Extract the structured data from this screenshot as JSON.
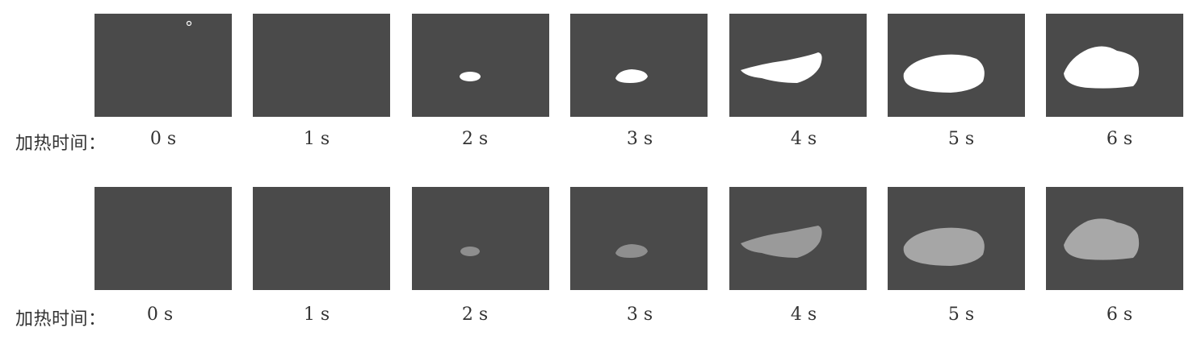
{
  "rows": [
    {
      "label": "加热时间：",
      "style": "binary-white",
      "frames": [
        "0 s",
        "1 s",
        "2 s",
        "3 s",
        "4 s",
        "5 s",
        "6 s"
      ]
    },
    {
      "label": "加热时间：",
      "style": "grey-tone",
      "frames": [
        "0 s",
        "1 s",
        "2 s",
        "3 s",
        "4 s",
        "5 s",
        "6 s"
      ]
    }
  ],
  "colors": {
    "panel_background": "#4a4a4a",
    "top_row_spot": "#ffffff",
    "bottom_row_spot": "#9a9a9a",
    "text": "#333333"
  }
}
